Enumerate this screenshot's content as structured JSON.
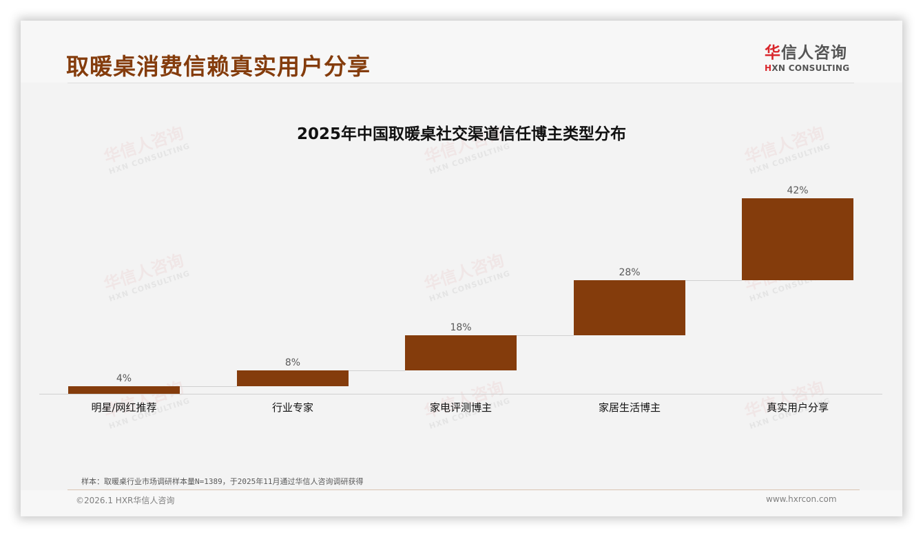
{
  "header": {
    "title": "取暖桌消费信赖真实用户分享",
    "logo_cn_accent": "华",
    "logo_cn_rest": "信人咨询",
    "logo_en_accent": "H",
    "logo_en_rest": "XN CONSULTING"
  },
  "watermark": {
    "cn": "华信人咨询",
    "en": "HXN CONSULTING"
  },
  "chart_data": {
    "type": "bar",
    "subtype": "waterfall",
    "title": "2025年中国取暖桌社交渠道信任博主类型分布",
    "categories": [
      "明星/网红推荐",
      "行业专家",
      "家电评测博主",
      "家居生活博主",
      "真实用户分享"
    ],
    "values": [
      4,
      8,
      18,
      28,
      42
    ],
    "value_labels": [
      "4%",
      "8%",
      "18%",
      "28%",
      "42%"
    ],
    "unit": "%",
    "xlabel": "",
    "ylabel": "",
    "ylim": [
      0,
      100
    ],
    "grid": false,
    "legend": null,
    "bar_color": "#843c0c"
  },
  "footer": {
    "note": "样本：取暖桌行业市场调研样本量N=1389，于2025年11月通过华信人咨询调研获得",
    "copyright": "©2026.1 HXR华信人咨询",
    "website": "www.hxrcon.com"
  }
}
